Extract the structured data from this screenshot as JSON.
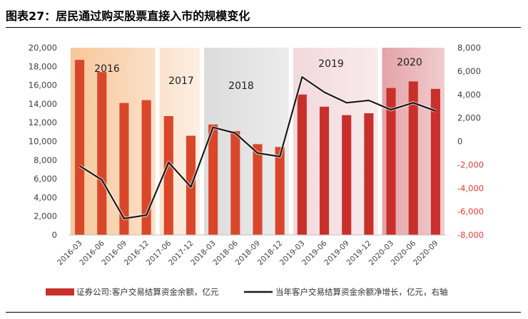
{
  "figure_title": "图表27：居民通过购买股票直接入市的规模变化",
  "chart_data": {
    "type": "bar",
    "categories": [
      "2016-03",
      "2016-06",
      "2016-09",
      "2016-12",
      "2017-06",
      "2017-12",
      "2018-03",
      "2018-06",
      "2018-09",
      "2018-12",
      "2019-03",
      "2019-06",
      "2019-09",
      "2019-12",
      "2020-03",
      "2020-06",
      "2020-09"
    ],
    "series": [
      {
        "name": "证券公司:客户交易结算资金余额，亿元",
        "type": "bar",
        "axis": "left",
        "values": [
          18700,
          17400,
          14100,
          14400,
          12700,
          10600,
          11800,
          11100,
          9700,
          9400,
          15000,
          13700,
          12800,
          13000,
          15700,
          16400,
          15600
        ]
      },
      {
        "name": "当年客户交易结算资金余额净增长，亿元，右轴",
        "type": "line",
        "axis": "right",
        "values": [
          -2100,
          -3300,
          -6600,
          -6300,
          -1800,
          -3900,
          1200,
          700,
          -1000,
          -1300,
          5500,
          4200,
          3300,
          3500,
          2700,
          3300,
          2600
        ]
      }
    ],
    "y_left": {
      "min": 0,
      "max": 20000,
      "ticks": [
        "0",
        "2,000",
        "4,000",
        "6,000",
        "8,000",
        "10,000",
        "12,000",
        "14,000",
        "16,000",
        "18,000",
        "20,000"
      ]
    },
    "y_right": {
      "min": -8000,
      "max": 8000,
      "ticks": [
        "-8,000",
        "-6,000",
        "-4,000",
        "-2,000",
        "0",
        "2,000",
        "4,000",
        "6,000",
        "8,000"
      ]
    },
    "year_bands": [
      {
        "label": "2016",
        "from": 0,
        "to": 3,
        "color": "#f7c79a"
      },
      {
        "label": "2017",
        "from": 4,
        "to": 5,
        "color": "#fbe2cc"
      },
      {
        "label": "2018",
        "from": 6,
        "to": 9,
        "color": "#dcdcdc"
      },
      {
        "label": "2019",
        "from": 10,
        "to": 13,
        "color": "#f3d9dc"
      },
      {
        "label": "2020",
        "from": 14,
        "to": 16,
        "color": "#e4a3a6"
      }
    ],
    "colors": {
      "bar": "#d9472b",
      "bar_2019_2020": "#c9302c",
      "line": "#1a1a1a",
      "negative_tick": "#e23b2e"
    },
    "legend_position": "bottom"
  }
}
